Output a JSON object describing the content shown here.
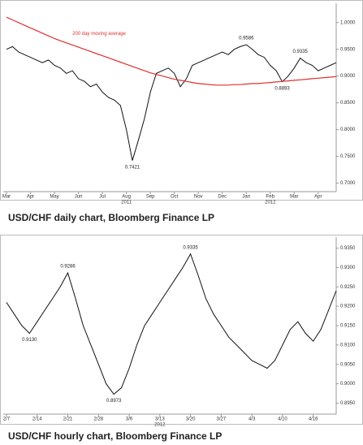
{
  "chart_data": [
    {
      "type": "line",
      "caption": "USD/CHF daily chart, Bloomberg Finance LP",
      "categories": [
        "Mar",
        null,
        null,
        null,
        "Apr",
        null,
        null,
        null,
        "May",
        null,
        null,
        null,
        "Jun",
        null,
        null,
        null,
        "Jul",
        null,
        null,
        null,
        "Aug",
        null,
        null,
        null,
        "Sep",
        null,
        null,
        null,
        "Oct",
        null,
        null,
        null,
        "Nov",
        null,
        null,
        null,
        "Dec",
        null,
        null,
        null,
        "Jan",
        null,
        null,
        null,
        "Feb",
        null,
        null,
        null,
        "Mar",
        null,
        null,
        null,
        "Apr",
        null,
        null,
        null
      ],
      "year_labels": [
        {
          "text": "2011",
          "category": "Aug"
        },
        {
          "text": "2012",
          "category": "Feb"
        }
      ],
      "series": [
        {
          "name": null,
          "color": "#111111",
          "values": [
            0.95,
            0.955,
            0.945,
            0.94,
            0.935,
            0.93,
            0.925,
            0.93,
            0.92,
            0.915,
            0.905,
            0.91,
            0.895,
            0.89,
            0.88,
            0.885,
            0.87,
            0.86,
            0.855,
            0.845,
            0.8,
            0.7421,
            0.78,
            0.82,
            0.87,
            0.905,
            0.91,
            0.915,
            0.905,
            0.88,
            0.895,
            0.92,
            0.925,
            0.93,
            0.935,
            0.94,
            0.945,
            0.94,
            0.95,
            0.955,
            0.9586,
            0.95,
            0.94,
            0.935,
            0.92,
            0.91,
            0.8893,
            0.9,
            0.915,
            0.9335,
            0.925,
            0.92,
            0.91,
            0.915,
            0.92,
            0.925
          ],
          "value_labels": [
            null,
            null,
            null,
            null,
            null,
            null,
            null,
            null,
            null,
            null,
            null,
            null,
            null,
            null,
            null,
            null,
            null,
            null,
            null,
            null,
            null,
            "0.7421",
            null,
            null,
            null,
            null,
            null,
            null,
            null,
            null,
            null,
            null,
            null,
            null,
            null,
            null,
            null,
            null,
            null,
            null,
            "0.9586",
            null,
            null,
            null,
            null,
            null,
            "0.8893",
            null,
            null,
            "0.9335",
            null,
            null,
            null,
            null,
            null,
            null
          ]
        },
        {
          "name": "200 day moving average",
          "color": "#e03030",
          "values": [
            1.01,
            1.005,
            1.0,
            0.995,
            0.99,
            0.985,
            0.98,
            0.975,
            0.97,
            0.966,
            0.962,
            0.958,
            0.954,
            0.95,
            0.946,
            0.942,
            0.938,
            0.934,
            0.93,
            0.926,
            0.922,
            0.918,
            0.914,
            0.91,
            0.906,
            0.903,
            0.9,
            0.897,
            0.894,
            0.892,
            0.89,
            0.888,
            0.886,
            0.885,
            0.884,
            0.883,
            0.883,
            0.883,
            0.884,
            0.884,
            0.885,
            0.886,
            0.886,
            0.887,
            0.888,
            0.889,
            0.89,
            0.891,
            0.892,
            0.893,
            0.894,
            0.895,
            0.896,
            0.897,
            0.898,
            0.899
          ]
        }
      ],
      "ylim": [
        0.69,
        1.03
      ],
      "yticks": [
        {
          "value": 0.7,
          "label": "0.7000"
        },
        {
          "value": 0.75,
          "label": "0.7500"
        },
        {
          "value": 0.8,
          "label": "0.8000"
        },
        {
          "value": 0.85,
          "label": "0.8500"
        },
        {
          "value": 0.9,
          "label": "0.9000"
        },
        {
          "value": 0.95,
          "label": "0.9500"
        },
        {
          "value": 1,
          "label": "1.0000"
        }
      ],
      "grid": false
    },
    {
      "type": "line",
      "caption": "USD/CHF hourly chart, Bloomberg Finance LP",
      "categories": [
        "2/7",
        null,
        null,
        null,
        "2/14",
        null,
        null,
        null,
        "2/21",
        null,
        null,
        null,
        "2/28",
        null,
        null,
        null,
        "3/6",
        null,
        null,
        null,
        "3/13",
        null,
        null,
        null,
        "3/20",
        null,
        null,
        null,
        "3/27",
        null,
        null,
        null,
        "4/3",
        null,
        null,
        null,
        "4/10",
        null,
        null,
        null,
        "4/16",
        null,
        null,
        null
      ],
      "year_labels": [
        {
          "text": "2012",
          "category": "3/13"
        }
      ],
      "series": [
        {
          "name": null,
          "color": "#111111",
          "values": [
            0.921,
            0.918,
            0.915,
            0.913,
            0.916,
            0.919,
            0.922,
            0.925,
            0.9286,
            0.922,
            0.915,
            0.91,
            0.905,
            0.9,
            0.8973,
            0.899,
            0.904,
            0.91,
            0.915,
            0.918,
            0.921,
            0.924,
            0.927,
            0.93,
            0.9335,
            0.928,
            0.922,
            0.918,
            0.915,
            0.912,
            0.91,
            0.908,
            0.906,
            0.905,
            0.904,
            0.906,
            0.91,
            0.914,
            0.916,
            0.913,
            0.911,
            0.914,
            0.919,
            0.924
          ],
          "value_labels": [
            null,
            null,
            null,
            "0.9130",
            null,
            null,
            null,
            null,
            "0.9286",
            null,
            null,
            null,
            null,
            null,
            "0.8973",
            null,
            null,
            null,
            null,
            null,
            null,
            null,
            null,
            null,
            "0.9335",
            null,
            null,
            null,
            null,
            null,
            null,
            null,
            null,
            null,
            null,
            null,
            null,
            null,
            null,
            null,
            null,
            null,
            null,
            null
          ]
        }
      ],
      "ylim": [
        0.893,
        0.937
      ],
      "yticks": [
        {
          "value": 0.895,
          "label": "0.8950"
        },
        {
          "value": 0.9,
          "label": "0.9000"
        },
        {
          "value": 0.905,
          "label": "0.9050"
        },
        {
          "value": 0.91,
          "label": "0.9100"
        },
        {
          "value": 0.915,
          "label": "0.9150"
        },
        {
          "value": 0.92,
          "label": "0.9200"
        },
        {
          "value": 0.925,
          "label": "0.9250"
        },
        {
          "value": 0.93,
          "label": "0.9300"
        },
        {
          "value": 0.935,
          "label": "0.9350"
        }
      ],
      "grid": false
    }
  ]
}
